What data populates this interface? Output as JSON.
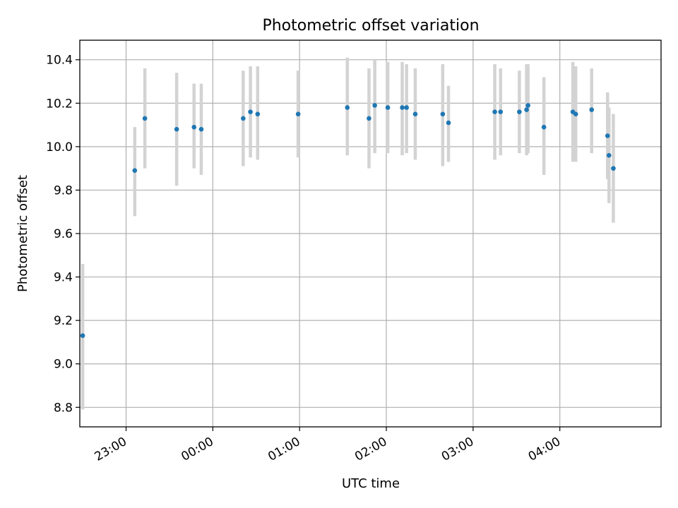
{
  "chart_data": {
    "type": "scatter",
    "title": "Photometric offset variation",
    "xlabel": "UTC time",
    "ylabel": "Photometric offset",
    "xlim": [
      "22:28",
      "05:10"
    ],
    "ylim": [
      8.71,
      10.49
    ],
    "xticks": [
      "23:00",
      "00:00",
      "01:00",
      "02:00",
      "03:00",
      "04:00"
    ],
    "yticks": [
      8.8,
      9.0,
      9.2,
      9.4,
      9.6,
      9.8,
      10.0,
      10.2,
      10.4
    ],
    "grid": true,
    "series": [
      {
        "marker_color": "#1f77b4",
        "errorbar_color": "#d3d3d3",
        "points": [
          {
            "x": "22:30",
            "y": 9.13,
            "ylo": 8.79,
            "yhi": 9.46
          },
          {
            "x": "23:06",
            "y": 9.89,
            "ylo": 9.68,
            "yhi": 10.09
          },
          {
            "x": "23:13",
            "y": 10.13,
            "ylo": 9.9,
            "yhi": 10.36
          },
          {
            "x": "23:35",
            "y": 10.08,
            "ylo": 9.82,
            "yhi": 10.34
          },
          {
            "x": "23:47",
            "y": 10.09,
            "ylo": 9.9,
            "yhi": 10.29
          },
          {
            "x": "23:52",
            "y": 10.08,
            "ylo": 9.87,
            "yhi": 10.29
          },
          {
            "x": "00:21",
            "y": 10.13,
            "ylo": 9.91,
            "yhi": 10.35
          },
          {
            "x": "00:26",
            "y": 10.16,
            "ylo": 9.95,
            "yhi": 10.37
          },
          {
            "x": "00:31",
            "y": 10.15,
            "ylo": 9.94,
            "yhi": 10.37
          },
          {
            "x": "00:59",
            "y": 10.15,
            "ylo": 9.95,
            "yhi": 10.35
          },
          {
            "x": "01:33",
            "y": 10.18,
            "ylo": 9.96,
            "yhi": 10.41
          },
          {
            "x": "01:48",
            "y": 10.13,
            "ylo": 9.9,
            "yhi": 10.36
          },
          {
            "x": "01:52",
            "y": 10.19,
            "ylo": 9.97,
            "yhi": 10.4
          },
          {
            "x": "02:01",
            "y": 10.18,
            "ylo": 9.97,
            "yhi": 10.39
          },
          {
            "x": "02:11",
            "y": 10.18,
            "ylo": 9.96,
            "yhi": 10.39
          },
          {
            "x": "02:14",
            "y": 10.18,
            "ylo": 9.97,
            "yhi": 10.38
          },
          {
            "x": "02:20",
            "y": 10.15,
            "ylo": 9.94,
            "yhi": 10.36
          },
          {
            "x": "02:39",
            "y": 10.15,
            "ylo": 9.91,
            "yhi": 10.38
          },
          {
            "x": "02:43",
            "y": 10.11,
            "ylo": 9.93,
            "yhi": 10.28
          },
          {
            "x": "03:15",
            "y": 10.16,
            "ylo": 9.94,
            "yhi": 10.38
          },
          {
            "x": "03:19",
            "y": 10.16,
            "ylo": 9.96,
            "yhi": 10.36
          },
          {
            "x": "03:32",
            "y": 10.16,
            "ylo": 9.97,
            "yhi": 10.35
          },
          {
            "x": "03:37",
            "y": 10.17,
            "ylo": 9.96,
            "yhi": 10.38
          },
          {
            "x": "03:38",
            "y": 10.19,
            "ylo": 9.97,
            "yhi": 10.38
          },
          {
            "x": "03:49",
            "y": 10.09,
            "ylo": 9.87,
            "yhi": 10.32
          },
          {
            "x": "04:09",
            "y": 10.16,
            "ylo": 9.93,
            "yhi": 10.39
          },
          {
            "x": "04:11",
            "y": 10.15,
            "ylo": 9.93,
            "yhi": 10.37
          },
          {
            "x": "04:22",
            "y": 10.17,
            "ylo": 9.97,
            "yhi": 10.36
          },
          {
            "x": "04:33",
            "y": 10.05,
            "ylo": 9.85,
            "yhi": 10.25
          },
          {
            "x": "04:34",
            "y": 9.96,
            "ylo": 9.74,
            "yhi": 10.18
          },
          {
            "x": "04:37",
            "y": 9.9,
            "ylo": 9.65,
            "yhi": 10.15
          }
        ]
      }
    ]
  }
}
